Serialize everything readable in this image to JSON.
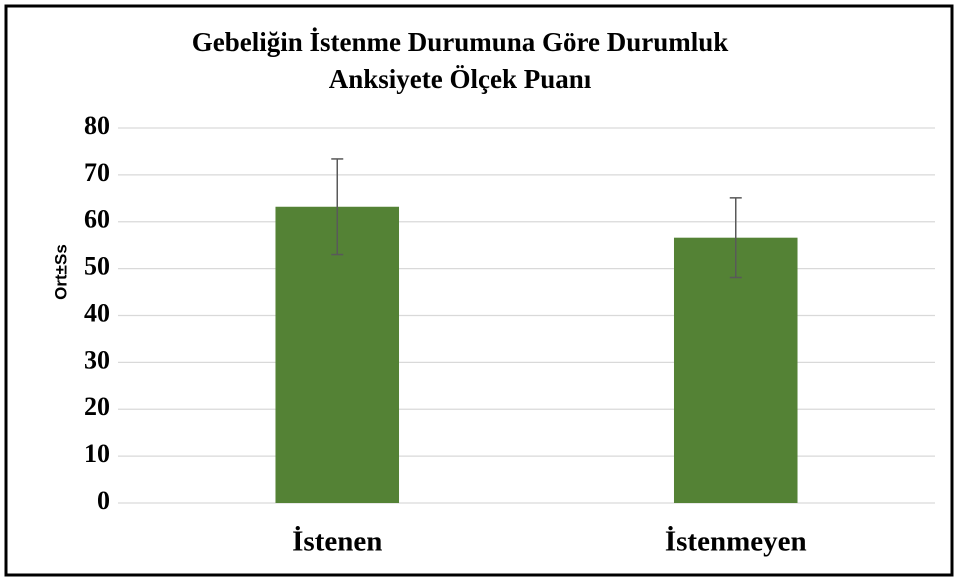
{
  "chart_data": {
    "type": "bar",
    "title": [
      "Gebeliğin İstenme Durumuna Göre Durumluk",
      "Anksiyete Ölçek Puanı"
    ],
    "y_label": "Ort±Ss",
    "categories": [
      "İstenen",
      "İstenmeyen"
    ],
    "values": [
      63.2,
      56.6
    ],
    "errors": [
      10.2,
      8.5
    ],
    "color": "#548235",
    "ylim": [
      0,
      80
    ],
    "yticks": [
      0,
      10,
      20,
      30,
      40,
      50,
      60,
      70,
      80
    ],
    "grid": true
  }
}
